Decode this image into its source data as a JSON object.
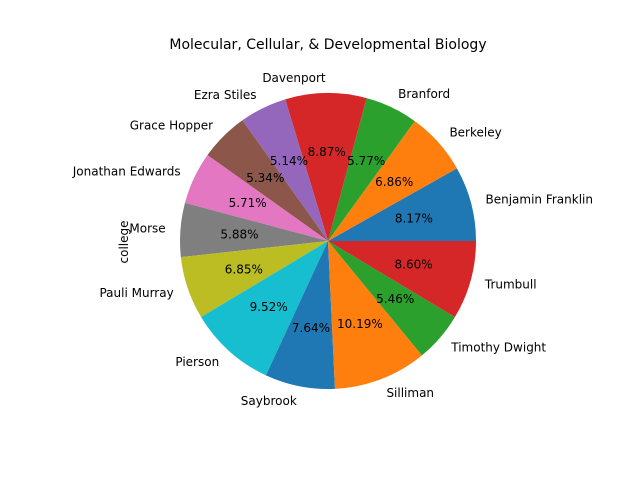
{
  "chart_data": {
    "type": "pie",
    "title": "Molecular, Cellular, & Developmental Biology",
    "ylabel": "college",
    "categories": [
      "Benjamin Franklin",
      "Berkeley",
      "Branford",
      "Davenport",
      "Ezra Stiles",
      "Grace Hopper",
      "Jonathan Edwards",
      "Morse",
      "Pauli Murray",
      "Pierson",
      "Saybrook",
      "Silliman",
      "Timothy Dwight",
      "Trumbull"
    ],
    "values": [
      8.17,
      6.86,
      5.77,
      8.87,
      5.14,
      5.34,
      5.71,
      5.88,
      6.85,
      9.52,
      7.64,
      10.19,
      5.46,
      8.6
    ],
    "value_labels": [
      "8.17%",
      "6.86%",
      "5.77%",
      "8.87%",
      "5.14%",
      "5.34%",
      "5.71%",
      "5.88%",
      "6.85%",
      "9.52%",
      "7.64%",
      "10.19%",
      "5.46%",
      "8.60%"
    ],
    "colors": [
      "#1f77b4",
      "#ff7f0e",
      "#2ca02c",
      "#d62728",
      "#9467bd",
      "#8c564b",
      "#e377c2",
      "#7f7f7f",
      "#bcbd22",
      "#17becf",
      "#1f77b4",
      "#ff7f0e",
      "#2ca02c",
      "#d62728"
    ],
    "start_angle_deg": 0,
    "direction": "counterclockwise",
    "legend": "none"
  }
}
